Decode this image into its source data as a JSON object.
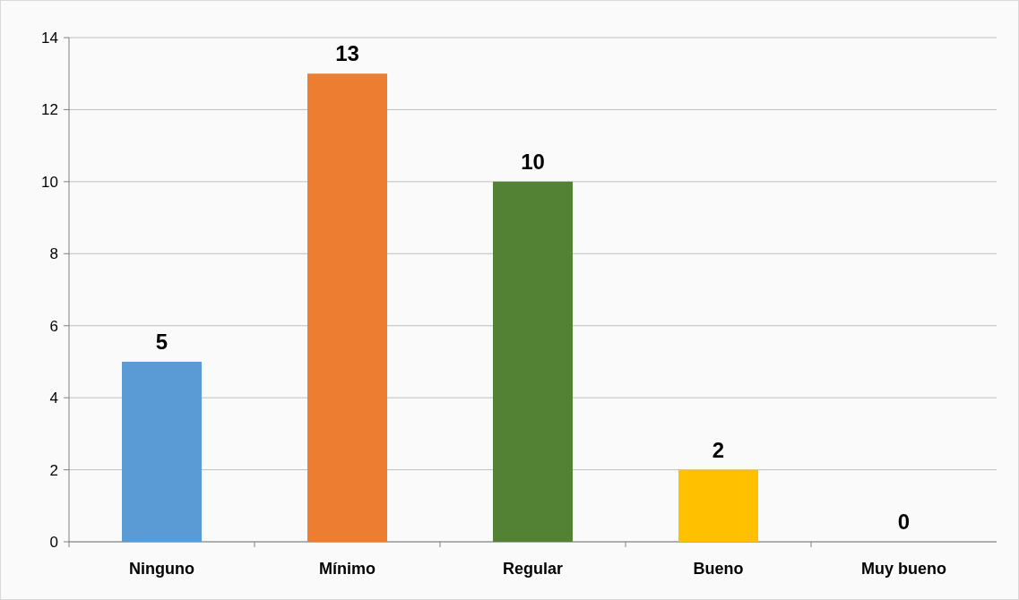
{
  "chart_data": {
    "type": "bar",
    "categories": [
      "Ninguno",
      "Mínimo",
      "Regular",
      "Bueno",
      "Muy bueno"
    ],
    "values": [
      5,
      13,
      10,
      2,
      0
    ],
    "colors": [
      "#5b9bd5",
      "#ed7d31",
      "#548235",
      "#ffc000",
      "#a5a5a5"
    ],
    "ylim": [
      0,
      14
    ],
    "yticks": [
      0,
      2,
      4,
      6,
      8,
      10,
      12,
      14
    ],
    "grid": "y",
    "data_labels": true
  }
}
